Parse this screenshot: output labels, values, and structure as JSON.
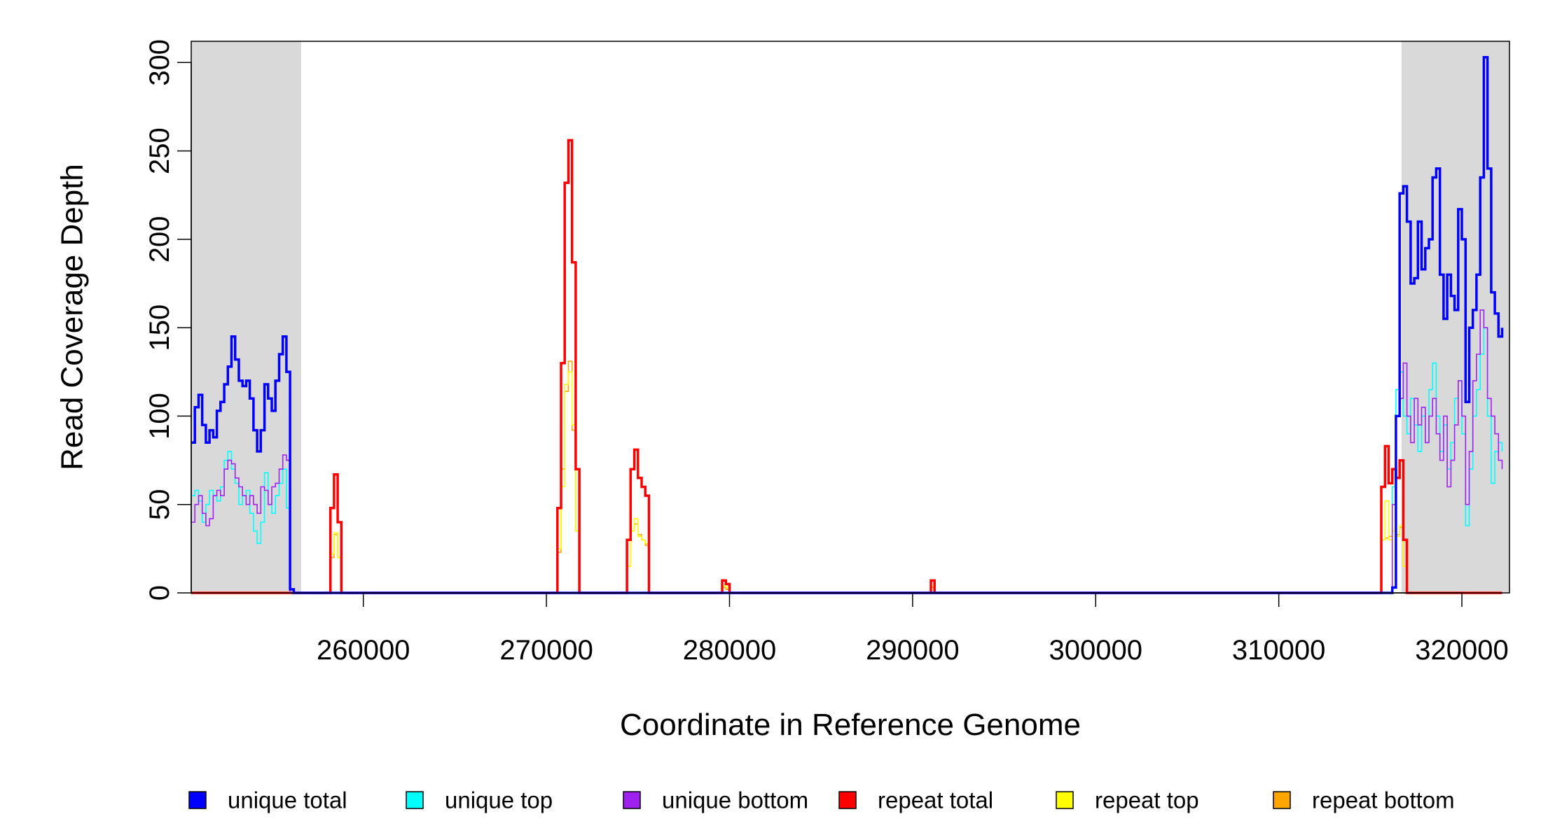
{
  "chart_data": {
    "type": "line",
    "xlabel": "Coordinate in Reference Genome",
    "ylabel": "Read Coverage Depth",
    "xlim": [
      250600,
      322600
    ],
    "ylim": [
      0,
      312
    ],
    "xticks": [
      260000,
      270000,
      280000,
      290000,
      300000,
      310000,
      320000
    ],
    "xtick_labels": [
      "260000",
      "270000",
      "280000",
      "290000",
      "300000",
      "310000",
      "320000"
    ],
    "yticks": [
      0,
      50,
      100,
      150,
      200,
      250,
      300
    ],
    "ytick_labels": [
      "0",
      "50",
      "100",
      "150",
      "200",
      "250",
      "300"
    ],
    "shaded_regions": [
      [
        250600,
        256600
      ],
      [
        316700,
        322600
      ]
    ],
    "shade_color": "#d9d9d9",
    "legend_position": "bottom",
    "series": [
      {
        "name": "unique total",
        "color": "#0000ff",
        "points": [
          [
            250600,
            85
          ],
          [
            250800,
            105
          ],
          [
            251000,
            112
          ],
          [
            251200,
            95
          ],
          [
            251400,
            85
          ],
          [
            251600,
            92
          ],
          [
            251800,
            88
          ],
          [
            252000,
            103
          ],
          [
            252200,
            108
          ],
          [
            252400,
            118
          ],
          [
            252600,
            128
          ],
          [
            252800,
            145
          ],
          [
            253000,
            132
          ],
          [
            253200,
            120
          ],
          [
            253400,
            117
          ],
          [
            253600,
            120
          ],
          [
            253800,
            110
          ],
          [
            254000,
            92
          ],
          [
            254200,
            80
          ],
          [
            254400,
            92
          ],
          [
            254600,
            118
          ],
          [
            254800,
            110
          ],
          [
            255000,
            103
          ],
          [
            255200,
            120
          ],
          [
            255400,
            135
          ],
          [
            255600,
            145
          ],
          [
            255800,
            125
          ],
          [
            256000,
            2
          ],
          [
            256200,
            0
          ],
          [
            316000,
            0
          ],
          [
            316200,
            3
          ],
          [
            316400,
            100
          ],
          [
            316600,
            226
          ],
          [
            316800,
            230
          ],
          [
            317000,
            210
          ],
          [
            317200,
            175
          ],
          [
            317400,
            178
          ],
          [
            317600,
            210
          ],
          [
            317800,
            183
          ],
          [
            318000,
            195
          ],
          [
            318200,
            200
          ],
          [
            318400,
            235
          ],
          [
            318600,
            240
          ],
          [
            318800,
            180
          ],
          [
            319000,
            155
          ],
          [
            319200,
            180
          ],
          [
            319400,
            168
          ],
          [
            319600,
            160
          ],
          [
            319800,
            217
          ],
          [
            320000,
            200
          ],
          [
            320200,
            108
          ],
          [
            320400,
            150
          ],
          [
            320600,
            160
          ],
          [
            320800,
            180
          ],
          [
            321000,
            235
          ],
          [
            321200,
            303
          ],
          [
            321400,
            240
          ],
          [
            321600,
            170
          ],
          [
            321800,
            158
          ],
          [
            322000,
            145
          ],
          [
            322200,
            150
          ]
        ]
      },
      {
        "name": "unique top",
        "color": "#00ffff",
        "points": [
          [
            250600,
            55
          ],
          [
            250800,
            58
          ],
          [
            251000,
            52
          ],
          [
            251200,
            40
          ],
          [
            251400,
            50
          ],
          [
            251600,
            58
          ],
          [
            251800,
            55
          ],
          [
            252000,
            52
          ],
          [
            252200,
            60
          ],
          [
            252400,
            75
          ],
          [
            252600,
            80
          ],
          [
            252800,
            70
          ],
          [
            253000,
            62
          ],
          [
            253200,
            50
          ],
          [
            253400,
            55
          ],
          [
            253600,
            58
          ],
          [
            253800,
            45
          ],
          [
            254000,
            35
          ],
          [
            254200,
            28
          ],
          [
            254400,
            40
          ],
          [
            254600,
            68
          ],
          [
            254800,
            50
          ],
          [
            255000,
            45
          ],
          [
            255200,
            55
          ],
          [
            255400,
            62
          ],
          [
            255600,
            70
          ],
          [
            255800,
            48
          ],
          [
            256000,
            0
          ],
          [
            316000,
            0
          ],
          [
            316200,
            60
          ],
          [
            316400,
            115
          ],
          [
            316600,
            125
          ],
          [
            316800,
            100
          ],
          [
            317000,
            90
          ],
          [
            317200,
            110
          ],
          [
            317400,
            95
          ],
          [
            317600,
            80
          ],
          [
            317800,
            100
          ],
          [
            318000,
            85
          ],
          [
            318200,
            115
          ],
          [
            318400,
            130
          ],
          [
            318600,
            100
          ],
          [
            318800,
            80
          ],
          [
            319000,
            95
          ],
          [
            319200,
            70
          ],
          [
            319400,
            85
          ],
          [
            319600,
            110
          ],
          [
            319800,
            120
          ],
          [
            320000,
            90
          ],
          [
            320200,
            38
          ],
          [
            320400,
            70
          ],
          [
            320600,
            100
          ],
          [
            320800,
            115
          ],
          [
            321000,
            135
          ],
          [
            321200,
            150
          ],
          [
            321400,
            100
          ],
          [
            321600,
            62
          ],
          [
            321800,
            80
          ],
          [
            322000,
            85
          ],
          [
            322200,
            80
          ]
        ]
      },
      {
        "name": "unique bottom",
        "color": "#a020f0",
        "points": [
          [
            250600,
            40
          ],
          [
            250800,
            50
          ],
          [
            251000,
            55
          ],
          [
            251200,
            45
          ],
          [
            251400,
            38
          ],
          [
            251600,
            42
          ],
          [
            251800,
            55
          ],
          [
            252000,
            58
          ],
          [
            252200,
            55
          ],
          [
            252400,
            70
          ],
          [
            252600,
            75
          ],
          [
            252800,
            73
          ],
          [
            253000,
            65
          ],
          [
            253200,
            60
          ],
          [
            253400,
            55
          ],
          [
            253600,
            50
          ],
          [
            253800,
            55
          ],
          [
            254000,
            50
          ],
          [
            254200,
            45
          ],
          [
            254400,
            60
          ],
          [
            254600,
            58
          ],
          [
            254800,
            50
          ],
          [
            255000,
            60
          ],
          [
            255200,
            62
          ],
          [
            255400,
            70
          ],
          [
            255600,
            78
          ],
          [
            255800,
            75
          ],
          [
            256000,
            0
          ],
          [
            316000,
            0
          ],
          [
            316200,
            50
          ],
          [
            316400,
            100
          ],
          [
            316600,
            110
          ],
          [
            316800,
            130
          ],
          [
            317000,
            100
          ],
          [
            317200,
            85
          ],
          [
            317400,
            110
          ],
          [
            317600,
            95
          ],
          [
            317800,
            105
          ],
          [
            318000,
            85
          ],
          [
            318200,
            100
          ],
          [
            318400,
            110
          ],
          [
            318600,
            90
          ],
          [
            318800,
            75
          ],
          [
            319000,
            100
          ],
          [
            319200,
            60
          ],
          [
            319400,
            75
          ],
          [
            319600,
            95
          ],
          [
            319800,
            120
          ],
          [
            320000,
            100
          ],
          [
            320200,
            50
          ],
          [
            320400,
            80
          ],
          [
            320600,
            120
          ],
          [
            320800,
            135
          ],
          [
            321000,
            160
          ],
          [
            321200,
            150
          ],
          [
            321400,
            110
          ],
          [
            321600,
            100
          ],
          [
            321800,
            90
          ],
          [
            322000,
            75
          ],
          [
            322200,
            70
          ]
        ]
      },
      {
        "name": "repeat total",
        "color": "#ff0000",
        "points": [
          [
            250600,
            0
          ],
          [
            258000,
            0
          ],
          [
            258200,
            48
          ],
          [
            258400,
            67
          ],
          [
            258600,
            40
          ],
          [
            258800,
            0
          ],
          [
            270400,
            0
          ],
          [
            270600,
            48
          ],
          [
            270800,
            130
          ],
          [
            271000,
            232
          ],
          [
            271200,
            256
          ],
          [
            271400,
            187
          ],
          [
            271600,
            70
          ],
          [
            271800,
            0
          ],
          [
            274200,
            0
          ],
          [
            274400,
            30
          ],
          [
            274600,
            70
          ],
          [
            274800,
            81
          ],
          [
            275000,
            65
          ],
          [
            275200,
            60
          ],
          [
            275400,
            55
          ],
          [
            275600,
            0
          ],
          [
            279400,
            0
          ],
          [
            279600,
            7
          ],
          [
            279800,
            5
          ],
          [
            280000,
            0
          ],
          [
            290800,
            0
          ],
          [
            291000,
            7
          ],
          [
            291200,
            0
          ],
          [
            315400,
            0
          ],
          [
            315600,
            60
          ],
          [
            315800,
            83
          ],
          [
            316000,
            62
          ],
          [
            316200,
            70
          ],
          [
            316400,
            65
          ],
          [
            316600,
            75
          ],
          [
            316800,
            30
          ],
          [
            317000,
            0
          ],
          [
            322200,
            0
          ]
        ]
      },
      {
        "name": "repeat top",
        "color": "#ffff00",
        "points": [
          [
            250600,
            0
          ],
          [
            258000,
            0
          ],
          [
            258200,
            22
          ],
          [
            258400,
            34
          ],
          [
            258600,
            20
          ],
          [
            258800,
            0
          ],
          [
            270400,
            0
          ],
          [
            270600,
            25
          ],
          [
            270800,
            60
          ],
          [
            271000,
            118
          ],
          [
            271200,
            125
          ],
          [
            271400,
            95
          ],
          [
            271600,
            35
          ],
          [
            271800,
            0
          ],
          [
            274200,
            0
          ],
          [
            274400,
            15
          ],
          [
            274600,
            35
          ],
          [
            274800,
            42
          ],
          [
            275000,
            32
          ],
          [
            275200,
            30
          ],
          [
            275400,
            28
          ],
          [
            275600,
            0
          ],
          [
            279400,
            0
          ],
          [
            279600,
            4
          ],
          [
            279800,
            3
          ],
          [
            280000,
            0
          ],
          [
            290800,
            0
          ],
          [
            291000,
            4
          ],
          [
            291200,
            0
          ],
          [
            315400,
            0
          ],
          [
            315600,
            30
          ],
          [
            315800,
            52
          ],
          [
            316000,
            30
          ],
          [
            316200,
            35
          ],
          [
            316400,
            32
          ],
          [
            316600,
            38
          ],
          [
            316800,
            15
          ],
          [
            317000,
            0
          ],
          [
            322200,
            0
          ]
        ]
      },
      {
        "name": "repeat bottom",
        "color": "#ffa500",
        "points": [
          [
            250600,
            0
          ],
          [
            258000,
            0
          ],
          [
            258200,
            20
          ],
          [
            258400,
            33
          ],
          [
            258600,
            20
          ],
          [
            258800,
            0
          ],
          [
            270400,
            0
          ],
          [
            270600,
            23
          ],
          [
            270800,
            70
          ],
          [
            271000,
            114
          ],
          [
            271200,
            131
          ],
          [
            271400,
            92
          ],
          [
            271600,
            35
          ],
          [
            271800,
            0
          ],
          [
            274200,
            0
          ],
          [
            274400,
            15
          ],
          [
            274600,
            35
          ],
          [
            274800,
            39
          ],
          [
            275000,
            33
          ],
          [
            275200,
            30
          ],
          [
            275400,
            27
          ],
          [
            275600,
            0
          ],
          [
            279400,
            0
          ],
          [
            279600,
            3
          ],
          [
            279800,
            2
          ],
          [
            280000,
            0
          ],
          [
            290800,
            0
          ],
          [
            291000,
            3
          ],
          [
            291200,
            0
          ],
          [
            315400,
            0
          ],
          [
            315600,
            30
          ],
          [
            315800,
            31
          ],
          [
            316000,
            32
          ],
          [
            316200,
            35
          ],
          [
            316400,
            33
          ],
          [
            316600,
            37
          ],
          [
            316800,
            15
          ],
          [
            317000,
            0
          ],
          [
            322200,
            0
          ]
        ]
      }
    ]
  }
}
